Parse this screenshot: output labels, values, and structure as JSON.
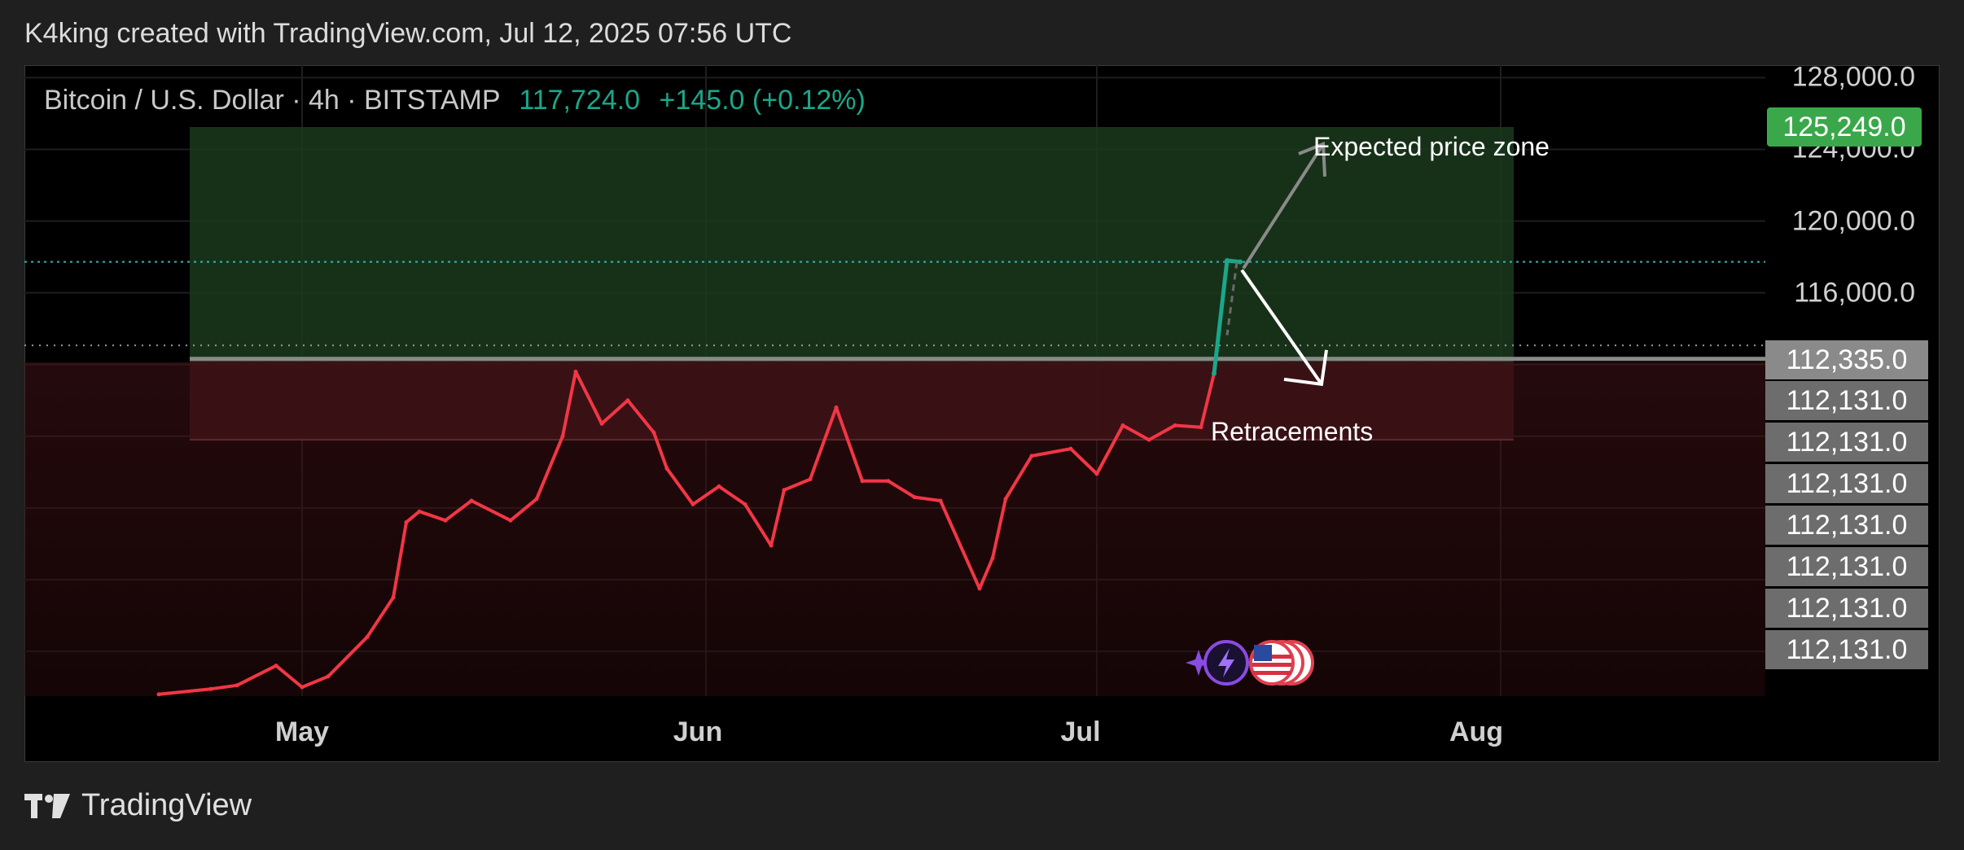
{
  "header": {
    "attribution": "K4king created with TradingView.com, Jul 12, 2025 07:56 UTC"
  },
  "legend": {
    "symbol": "Bitcoin / U.S. Dollar · 4h · BITSTAMP",
    "last": "117,724.0",
    "change": "+145.0 (+0.12%)"
  },
  "annotations": {
    "expected": "Expected price zone",
    "retracements": "Retracements"
  },
  "badges": {
    "target": "125,249.0",
    "line": "112,335.0",
    "stack": [
      "112,131.0",
      "112,131.0",
      "112,131.0",
      "112,131.0",
      "112,131.0",
      "112,131.0",
      "112,131.0"
    ]
  },
  "footer": {
    "brand": "TradingView"
  },
  "colors": {
    "up": "#1aa78a",
    "down": "#f23645",
    "target": "#3aa84a"
  },
  "chart_data": {
    "type": "line",
    "title": "Bitcoin / U.S. Dollar · 4h · BITSTAMP",
    "x_ticks": [
      "May",
      "Jun",
      "Jul",
      "Aug"
    ],
    "y_ticks": [
      "128,000.0",
      "124,000.0",
      "120,000.0",
      "116,000.0"
    ],
    "ylim": [
      93500,
      128700
    ],
    "grid": true,
    "series": [
      {
        "name": "BTCUSD",
        "x": [
          "2025-04-20",
          "2025-04-24",
          "2025-04-26",
          "2025-04-29",
          "2025-05-01",
          "2025-05-03",
          "2025-05-06",
          "2025-05-08",
          "2025-05-09",
          "2025-05-10",
          "2025-05-12",
          "2025-05-14",
          "2025-05-17",
          "2025-05-19",
          "2025-05-21",
          "2025-05-22",
          "2025-05-24",
          "2025-05-26",
          "2025-05-28",
          "2025-05-29",
          "2025-05-31",
          "2025-06-02",
          "2025-06-04",
          "2025-06-06",
          "2025-06-07",
          "2025-06-09",
          "2025-06-11",
          "2025-06-13",
          "2025-06-15",
          "2025-06-17",
          "2025-06-19",
          "2025-06-22",
          "2025-06-23",
          "2025-06-24",
          "2025-06-26",
          "2025-06-29",
          "2025-07-01",
          "2025-07-03",
          "2025-07-05",
          "2025-07-07",
          "2025-07-09",
          "2025-07-10",
          "2025-07-11",
          "2025-07-12"
        ],
        "y": [
          93600,
          93900,
          94100,
          95200,
          94000,
          94600,
          96800,
          99000,
          103200,
          103800,
          103300,
          104400,
          103300,
          104500,
          108000,
          111600,
          108700,
          110000,
          108200,
          106200,
          104200,
          105200,
          104200,
          101900,
          105000,
          105600,
          109600,
          105500,
          105500,
          104600,
          104400,
          99500,
          101200,
          104500,
          106900,
          107300,
          105900,
          108600,
          107800,
          108600,
          108500,
          111500,
          117800,
          117724
        ]
      }
    ],
    "zones": [
      {
        "from": 112131,
        "to": 125249,
        "color": "green"
      },
      {
        "from": 107800,
        "to": 112131,
        "color": "red"
      }
    ],
    "levels": [
      112335,
      112131,
      117724
    ]
  }
}
